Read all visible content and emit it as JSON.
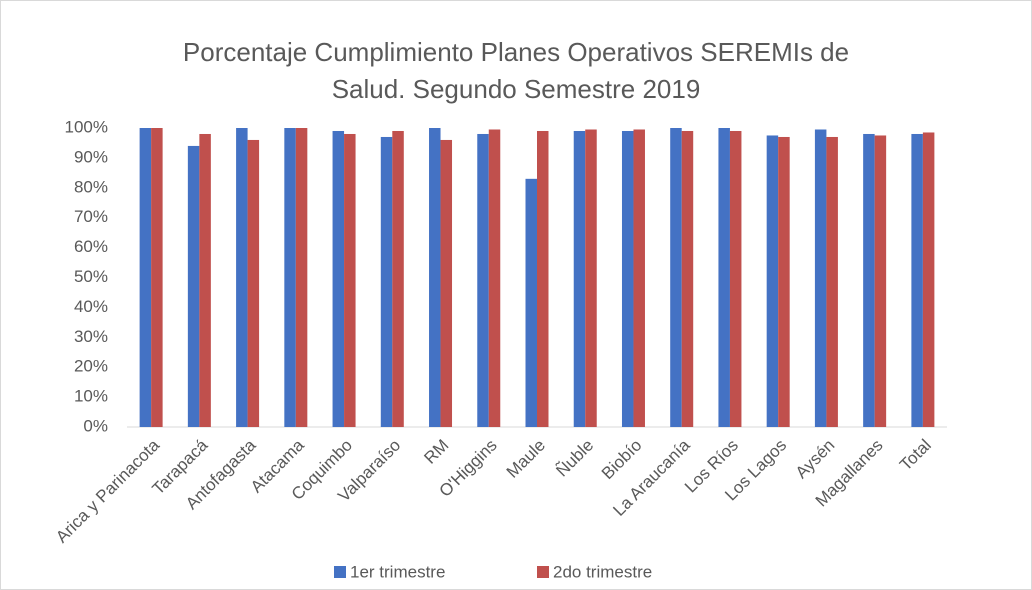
{
  "chart_data": {
    "type": "bar",
    "title": "Porcentaje Cumplimiento Planes Operativos SEREMIs de Salud. Segundo Semestre 2019",
    "categories": [
      "Arica y Parinacota",
      "Tarapacá",
      "Antofagasta",
      "Atacama",
      "Coquimbo",
      "Valparaíso",
      "RM",
      "O'Higgins",
      "Maule",
      "Ñuble",
      "Biobío",
      "La Araucanía",
      "Los Ríos",
      "Los Lagos",
      "Aysén",
      "Magallanes",
      "Total"
    ],
    "series": [
      {
        "name": "1er trimestre",
        "color": "#4472c4",
        "values": [
          100,
          94,
          100,
          100,
          99,
          97,
          100,
          98,
          83,
          99,
          99,
          100,
          100,
          97.5,
          99.5,
          98,
          98
        ]
      },
      {
        "name": "2do trimestre",
        "color": "#c0504d",
        "values": [
          100,
          98,
          96,
          100,
          98,
          99,
          96,
          99.5,
          99,
          99.5,
          99.5,
          99,
          99,
          97,
          97,
          97.5,
          98.5
        ]
      }
    ],
    "ylim": [
      0,
      100
    ],
    "yticks": [
      {
        "value": 0,
        "label": "0%"
      },
      {
        "value": 10,
        "label": "10%"
      },
      {
        "value": 20,
        "label": "20%"
      },
      {
        "value": 30,
        "label": "30%"
      },
      {
        "value": 40,
        "label": "40%"
      },
      {
        "value": 50,
        "label": "50%"
      },
      {
        "value": 60,
        "label": "60%"
      },
      {
        "value": 70,
        "label": "70%"
      },
      {
        "value": 80,
        "label": "80%"
      },
      {
        "value": 90,
        "label": "90%"
      },
      {
        "value": 100,
        "label": "100%"
      }
    ],
    "grid": false,
    "legend": "bottom"
  }
}
